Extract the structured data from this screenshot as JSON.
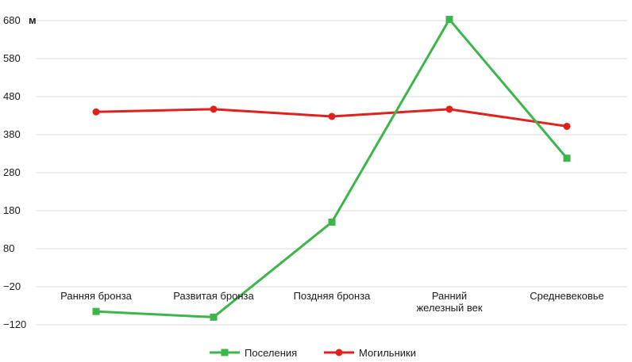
{
  "chart_data": {
    "type": "line",
    "unit_label": "м",
    "categories": [
      "Ранняя бронза",
      "Развитая бронза",
      "Поздняя бронза",
      "Ранний\nжелезный век",
      "Средневековье"
    ],
    "y_ticks": [
      680,
      580,
      480,
      380,
      280,
      180,
      80,
      -20,
      -120
    ],
    "ylim": [
      -120,
      680
    ],
    "grid": true,
    "legend_position": "bottom",
    "series": [
      {
        "name": "Поселения",
        "color": "#3cb54a",
        "marker": "square",
        "values": [
          -85,
          -100,
          150,
          683,
          318
        ]
      },
      {
        "name": "Могильники",
        "color": "#e0211d",
        "marker": "circle",
        "values": [
          440,
          447,
          428,
          447,
          402
        ]
      }
    ]
  }
}
